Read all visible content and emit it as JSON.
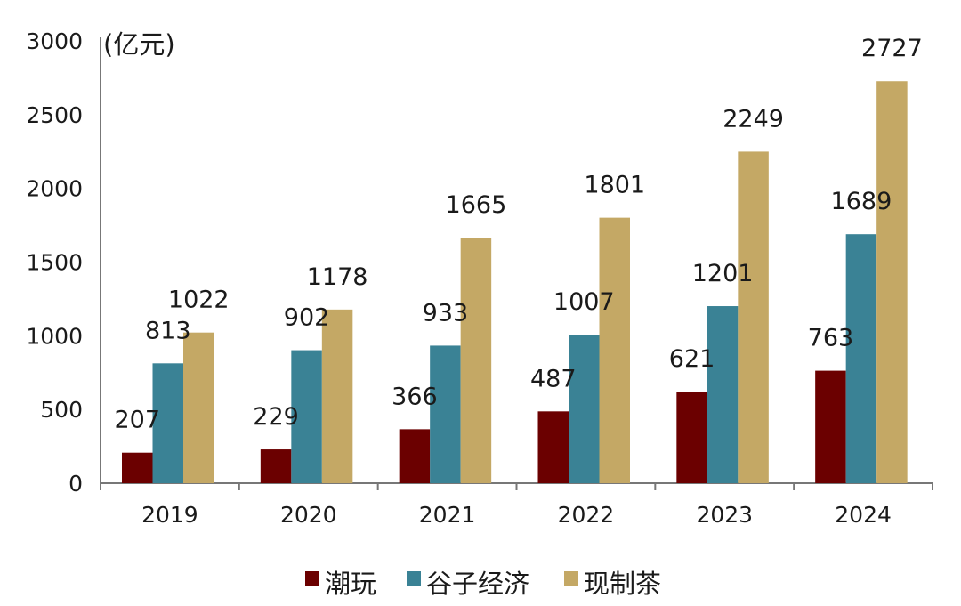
{
  "chart_data": {
    "type": "bar",
    "unit_label": "(亿元)",
    "categories": [
      "2019",
      "2020",
      "2021",
      "2022",
      "2023",
      "2024"
    ],
    "series": [
      {
        "name": "潮玩",
        "color": "#6b0000",
        "values": [
          207,
          229,
          366,
          487,
          621,
          763
        ]
      },
      {
        "name": "谷子经济",
        "color": "#3a8295",
        "values": [
          813,
          902,
          933,
          1007,
          1201,
          1689
        ]
      },
      {
        "name": "现制茶",
        "color": "#c4a865",
        "values": [
          1022,
          1178,
          1665,
          1801,
          2249,
          2727
        ]
      }
    ],
    "ylim": [
      0,
      3000
    ],
    "yticks": [
      "0",
      "500",
      "1000",
      "1500",
      "2000",
      "2500",
      "3000"
    ],
    "grid": false,
    "legend_position": "bottom-center",
    "data_labels": true
  }
}
